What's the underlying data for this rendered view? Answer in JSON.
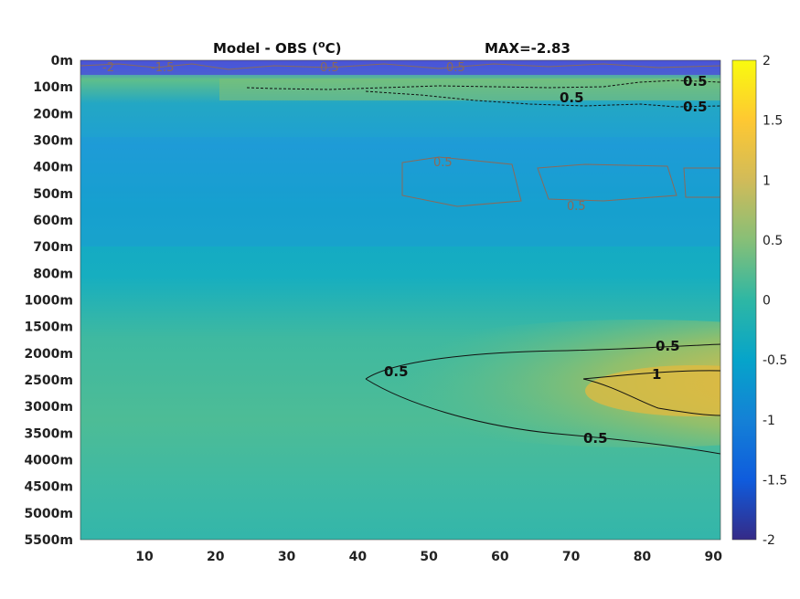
{
  "chart_data": {
    "type": "heatmap",
    "title": "Model - OBS (",
    "title_unit_sup": "o",
    "title_unit_end": "C)",
    "max_label": "MAX=-2.83",
    "y_tick_labels": [
      "0m",
      "100m",
      "200m",
      "300m",
      "400m",
      "500m",
      "600m",
      "700m",
      "800m",
      "1000m",
      "1500m",
      "2000m",
      "2500m",
      "3000m",
      "3500m",
      "4000m",
      "4500m",
      "5000m",
      "5500m"
    ],
    "x_tick_labels": [
      "10",
      "20",
      "30",
      "40",
      "50",
      "60",
      "70",
      "80",
      "90"
    ],
    "x_ticks": [
      10,
      20,
      30,
      40,
      50,
      60,
      70,
      80,
      90
    ],
    "xlim": [
      1,
      91
    ],
    "colorbar": {
      "ticks": [
        2,
        1.5,
        1,
        0.5,
        0,
        -0.5,
        -1,
        -1.5,
        -2
      ],
      "tick_labels": [
        "2",
        "1.5",
        "1",
        "0.5",
        "0",
        "-0.5",
        "-1",
        "-1.5",
        "-2"
      ],
      "clim": [
        -2,
        2
      ],
      "colormap": "parula"
    },
    "contours": [
      {
        "level": 0.5,
        "color": "#111111",
        "label": "0.5"
      },
      {
        "level": 1,
        "color": "#111111",
        "label": "1"
      },
      {
        "level": 0.5,
        "color": "#8a6a5a",
        "label": "0.5"
      },
      {
        "level": -1.5,
        "color": "#8a6a5a",
        "label": "-1.5"
      },
      {
        "level": -2,
        "color": "#8a6a5a",
        "label": "-2"
      }
    ],
    "grid": false
  }
}
